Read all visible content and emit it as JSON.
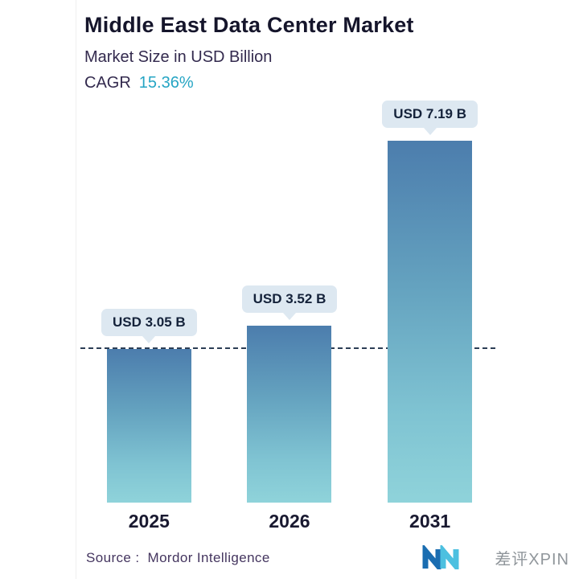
{
  "header": {
    "title": "Middle East Data Center Market",
    "subtitle": "Market Size in USD Billion",
    "cagr_label": "CAGR",
    "cagr_value": "15.36%"
  },
  "chart_data": {
    "type": "bar",
    "categories": [
      "2025",
      "2026",
      "2031"
    ],
    "values": [
      3.05,
      3.52,
      7.19
    ],
    "value_labels": [
      "USD 3.05 B",
      "USD 3.52 B",
      "USD 7.19 B"
    ],
    "title": "Middle East Data Center Market",
    "xlabel": "",
    "ylabel": "Market Size in USD Billion",
    "ylim": [
      0,
      7.5
    ],
    "grid": false,
    "legend": "none",
    "annotations": [
      "dashed horizontal reference line at 2025 bar level"
    ],
    "bar_gradient_top": "#4c7dad",
    "bar_gradient_bottom": "#8fd3da"
  },
  "footer": {
    "source_label": "Source :",
    "source_value": "Mordor Intelligence",
    "logo_name": "mordor-intelligence-logo",
    "watermark": "差评XPIN"
  },
  "colors": {
    "cagr_value": "#26a5c4",
    "pill_bg": "#dde8f1",
    "dash_line": "#2c3e55"
  }
}
